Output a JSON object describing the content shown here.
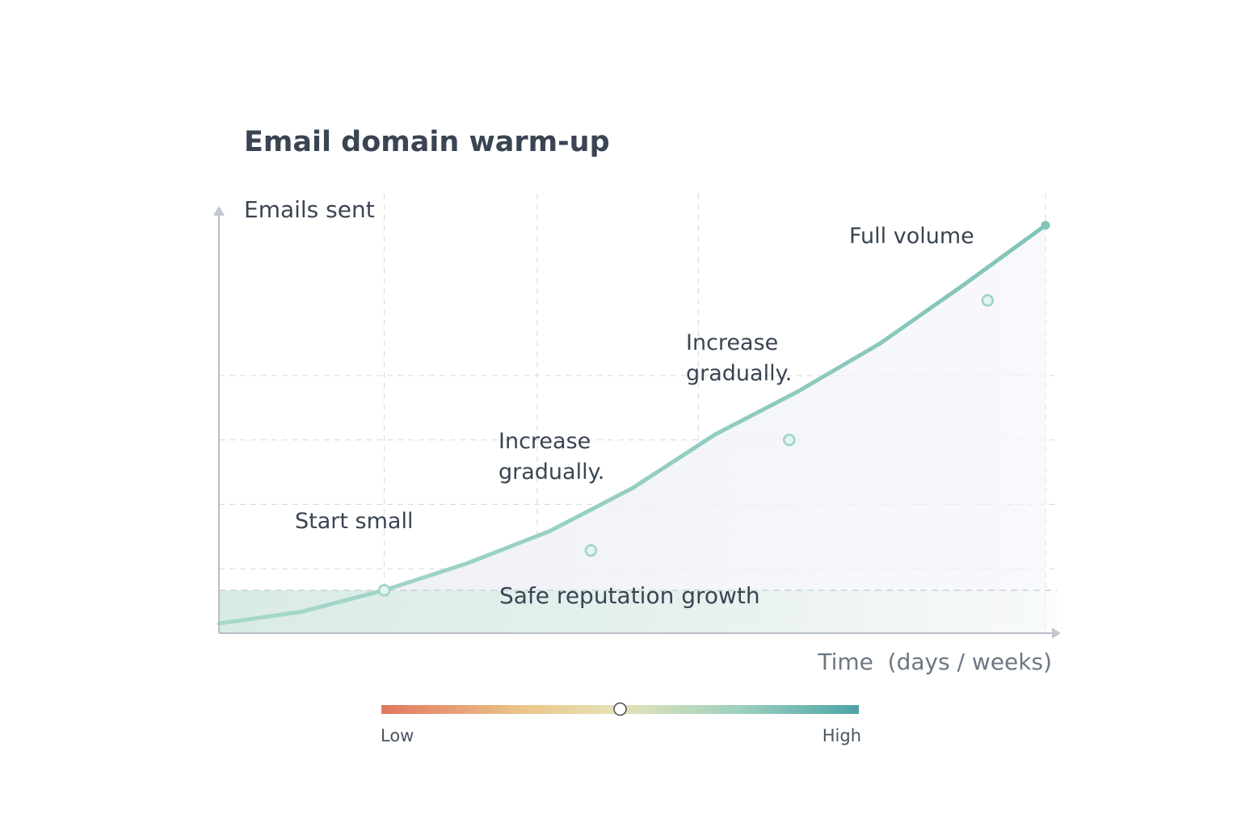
{
  "chart_data": {
    "type": "area",
    "title": "Email domain warm-up",
    "ylabel": "Emails sent",
    "xlabel": "Time  (days / weeks)",
    "grid": true,
    "x": [
      0,
      1,
      2,
      3,
      4,
      5,
      6,
      7,
      8,
      9,
      10
    ],
    "values": [
      0.45,
      1.0,
      2.0,
      3.25,
      4.75,
      6.75,
      9.25,
      11.25,
      13.5,
      16.2,
      19.0
    ],
    "highlight_points": [
      {
        "x": 2,
        "y": 2.0,
        "label": "Start small"
      },
      {
        "x": 4.5,
        "y": 3.85,
        "label": "Increase gradually."
      },
      {
        "x": 6.9,
        "y": 9.0,
        "label": "Increase gradually."
      },
      {
        "x": 9.3,
        "y": 15.5,
        "label": "Full volume"
      }
    ],
    "band": {
      "label": "Safe reputation growth",
      "y_max": 2.0
    },
    "colors": {
      "line": "#9fd4c7",
      "line_end": "#82c2b9",
      "band_fill": "#dcede8",
      "area_fill": "#eef0f7",
      "grid": "#d6d9de",
      "axis": "#b8bec6"
    }
  },
  "scale": {
    "low_label": "Low",
    "high_label": "High",
    "level": 0.5,
    "colors": [
      "#e2775f",
      "#e9c98a",
      "#c8d9b0",
      "#8fcfc0",
      "#4ea3a6"
    ]
  }
}
